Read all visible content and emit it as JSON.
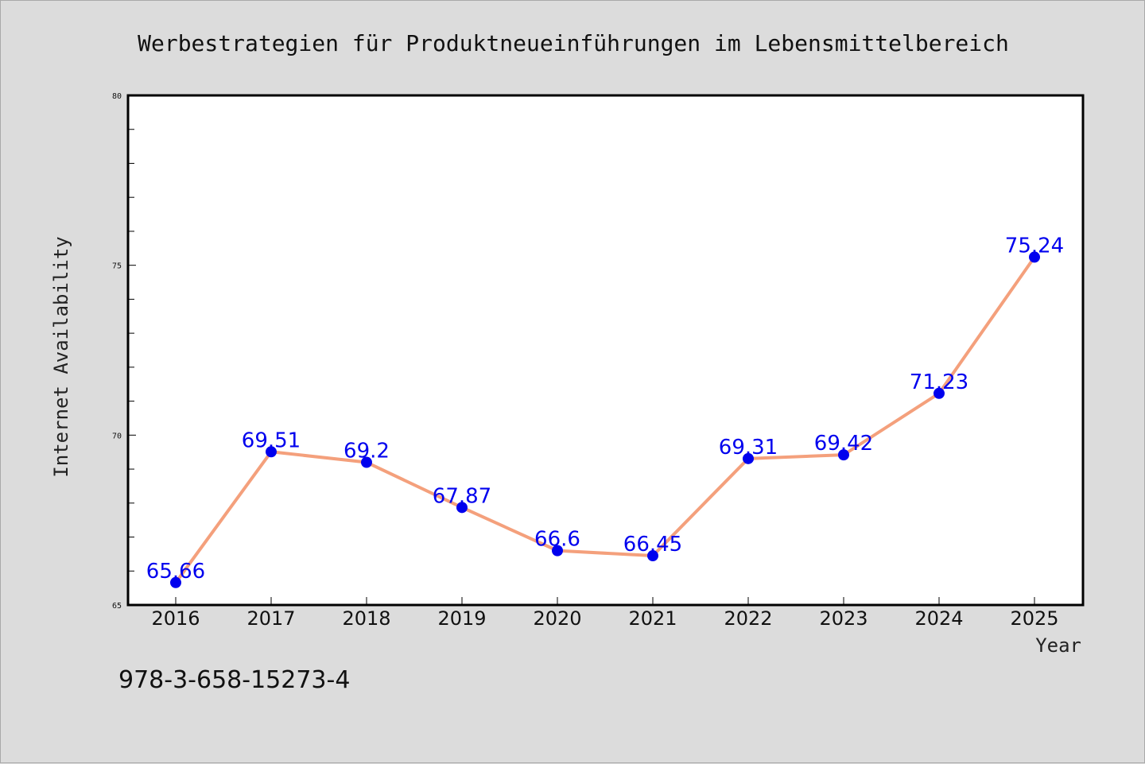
{
  "chart_data": {
    "type": "line",
    "title": "Werbestrategien für Produktneueinführungen im Lebensmittelbereich",
    "xlabel": "Year",
    "ylabel": "Internet Availability",
    "x": [
      "2016",
      "2017",
      "2018",
      "2019",
      "2020",
      "2021",
      "2022",
      "2023",
      "2024",
      "2025"
    ],
    "series": [
      {
        "values": [
          65.66,
          69.51,
          69.2,
          67.87,
          66.6,
          66.45,
          69.31,
          69.42,
          71.23,
          75.24
        ],
        "labels": [
          "65.66",
          "69.51",
          "69.2",
          "67.87",
          "66.6",
          "66.45",
          "69.31",
          "69.42",
          "71.23",
          "75.24"
        ],
        "line_color": "#f4a07c",
        "marker_color": "#0000ee",
        "label_color": "#0000ee"
      }
    ],
    "ylim": [
      65,
      80
    ],
    "y_major_ticks": [
      65,
      70,
      75,
      80
    ],
    "y_minor_step": 1,
    "grid": false,
    "legend": "none"
  },
  "footer": {
    "isbn": "978-3-658-15273-4"
  },
  "colors": {
    "background": "#dcdcdc",
    "plot_background": "#ffffff",
    "frame": "#000000"
  }
}
